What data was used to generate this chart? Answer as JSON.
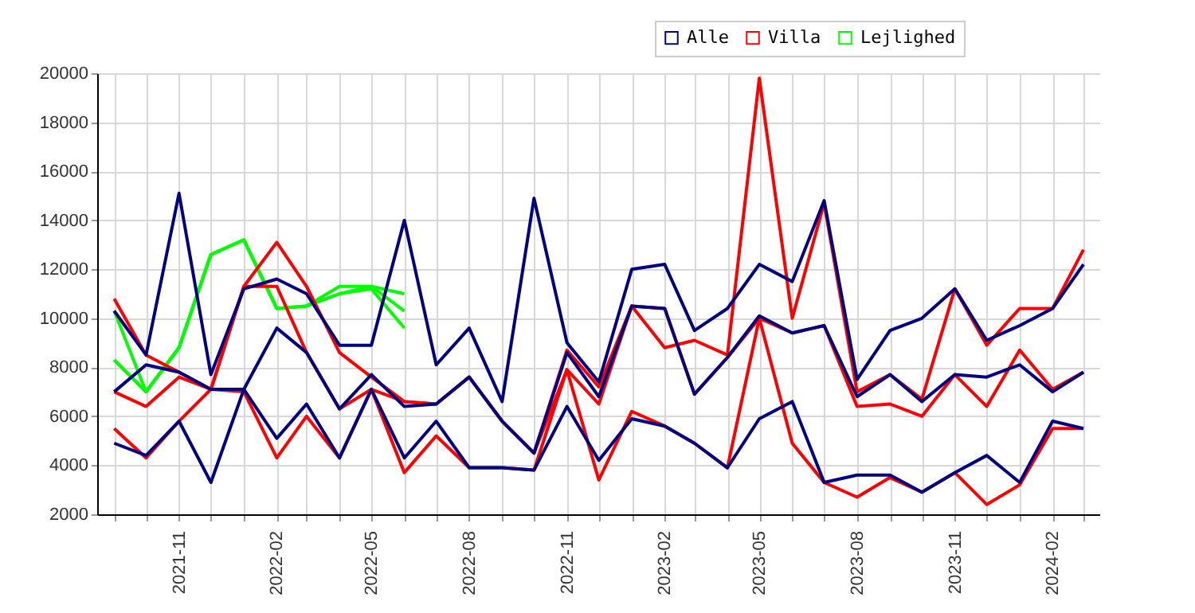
{
  "chart_data": {
    "type": "line",
    "x": [
      "2021-09",
      "2021-10",
      "2021-11",
      "2021-12",
      "2022-01",
      "2022-02",
      "2022-03",
      "2022-04",
      "2022-05",
      "2022-06",
      "2022-07",
      "2022-08",
      "2022-09",
      "2022-10",
      "2022-11",
      "2022-12",
      "2023-01",
      "2023-02",
      "2023-03",
      "2023-04",
      "2023-05",
      "2023-06",
      "2023-07",
      "2023-08",
      "2023-09",
      "2023-10",
      "2023-11",
      "2023-12",
      "2024-01",
      "2024-02",
      "2024-03"
    ],
    "series": [
      {
        "name": "Alle",
        "color": "#000080",
        "values": [
          10300,
          8500,
          15100,
          7700,
          11200,
          11600,
          11000,
          8900,
          8900,
          14000,
          8100,
          9600,
          6600,
          14900,
          9000,
          7400,
          12000,
          12200,
          9500,
          10400,
          12200,
          11500,
          14800,
          7500,
          9500,
          10000,
          11200,
          9100,
          9700,
          10400,
          12200
        ]
      },
      {
        "color": "#000080",
        "values": [
          7000,
          8100,
          7800,
          7100,
          7100,
          9600,
          8600,
          6300,
          7700,
          6400,
          6500,
          7600,
          5800,
          4500,
          8600,
          6800,
          10500,
          10400,
          6900,
          8400,
          10100,
          9400,
          9700,
          6800,
          7700,
          6600,
          7700,
          7600,
          8100,
          7000,
          7800
        ]
      },
      {
        "color": "#000080",
        "values": [
          4900,
          4400,
          5800,
          3300,
          7100,
          5100,
          6500,
          4300,
          7100,
          4300,
          5800,
          3900,
          3900,
          3800,
          6400,
          4200,
          5900,
          5600,
          4900,
          3900,
          5900,
          6600,
          3300,
          3600,
          3600,
          2900,
          3700,
          4400,
          3300,
          5800,
          5500
        ]
      },
      {
        "name": "Villa",
        "color": "#ff0000",
        "values": [
          10800,
          8500,
          7800,
          7100,
          11300,
          13100,
          11300,
          8600,
          7600,
          6600,
          6500,
          7600,
          5800,
          4500,
          8700,
          7200,
          10500,
          8800,
          9100,
          8500,
          19800,
          10000,
          14700,
          7000,
          7700,
          6700,
          11200,
          8900,
          10400,
          10400,
          12800
        ]
      },
      {
        "color": "#ff0000",
        "values": [
          7000,
          6400,
          7600,
          7100,
          11300,
          11300,
          8600,
          6300,
          7100,
          6600,
          6500,
          7600,
          5800,
          4500,
          7900,
          6500,
          10500,
          10400,
          6900,
          8400,
          10000,
          9400,
          9700,
          6400,
          6500,
          6000,
          7700,
          6400,
          8700,
          7100,
          7800
        ]
      },
      {
        "color": "#ff0000",
        "values": [
          5500,
          4300,
          5800,
          7100,
          7000,
          4300,
          6000,
          4300,
          7100,
          3700,
          5200,
          3900,
          3900,
          3800,
          7900,
          3400,
          6200,
          5600,
          4900,
          3900,
          10000,
          4900,
          3300,
          2700,
          3500,
          2900,
          3700,
          2400,
          3200,
          5500,
          5500
        ]
      },
      {
        "name": "Lejlighed",
        "color": "#00ff00",
        "values": [
          10300,
          7000,
          8800,
          12600,
          13200,
          10400,
          10500,
          11300,
          11300,
          11000,
          null,
          null,
          null,
          null,
          null,
          null,
          null,
          null,
          null,
          null,
          null,
          null,
          null,
          null,
          null,
          null,
          null,
          null,
          null,
          null,
          null
        ]
      },
      {
        "color": "#00ff00",
        "values": [
          8300,
          7000,
          8800,
          12600,
          13200,
          10400,
          10500,
          11000,
          11300,
          10300,
          null,
          null,
          null,
          null,
          null,
          null,
          null,
          null,
          null,
          null,
          null,
          null,
          null,
          null,
          null,
          null,
          null,
          null,
          null,
          null,
          null
        ]
      },
      {
        "color": "#00ff00",
        "values": [
          8300,
          7000,
          8800,
          12600,
          13200,
          10400,
          10500,
          11000,
          11200,
          9600,
          null,
          null,
          null,
          null,
          null,
          null,
          null,
          null,
          null,
          null,
          null,
          null,
          null,
          null,
          null,
          null,
          null,
          null,
          null,
          null,
          null
        ]
      }
    ],
    "xlim": [
      "2021-08-16",
      "2024-03-16"
    ],
    "xticks": [
      {
        "value": "2021-09",
        "label": null
      },
      {
        "value": "2021-10",
        "label": null
      },
      "2021-11",
      {
        "value": "2021-12",
        "label": null
      },
      {
        "value": "2022-01",
        "label": null
      },
      "2022-02",
      {
        "value": "2022-03",
        "label": null
      },
      {
        "value": "2022-04",
        "label": null
      },
      "2022-05",
      {
        "value": "2022-06",
        "label": null
      },
      {
        "value": "2022-07",
        "label": null
      },
      "2022-08",
      {
        "value": "2022-09",
        "label": null
      },
      {
        "value": "2022-10",
        "label": null
      },
      "2022-11",
      {
        "value": "2022-12",
        "label": null
      },
      {
        "value": "2023-01",
        "label": null
      },
      "2023-02",
      {
        "value": "2023-03",
        "label": null
      },
      {
        "value": "2023-04",
        "label": null
      },
      "2023-05",
      {
        "value": "2023-06",
        "label": null
      },
      {
        "value": "2023-07",
        "label": null
      },
      "2023-08",
      {
        "value": "2023-09",
        "label": null
      },
      {
        "value": "2023-10",
        "label": null
      },
      "2023-11",
      {
        "value": "2023-12",
        "label": null
      },
      {
        "value": "2024-01",
        "label": null
      },
      "2024-02",
      {
        "value": "2024-03",
        "label": null
      }
    ],
    "ylim": [
      2000,
      20000
    ],
    "yticks": [
      2000,
      4000,
      6000,
      8000,
      10000,
      12000,
      14000,
      16000,
      18000,
      20000
    ],
    "grid": true,
    "legend": "top right"
  }
}
